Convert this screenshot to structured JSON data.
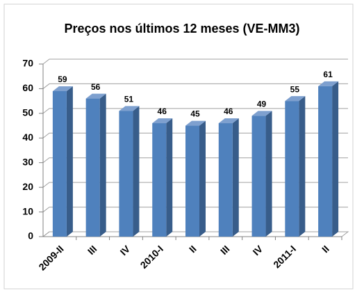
{
  "chart_data": {
    "type": "bar",
    "title": "Preços nos últimos 12 meses (VE-MM3)",
    "categories": [
      "2009-II",
      "III",
      "IV",
      "2010-I",
      "II",
      "III",
      "IV",
      "2011-I",
      "II"
    ],
    "values": [
      59,
      56,
      51,
      46,
      45,
      46,
      49,
      55,
      61
    ],
    "color": "#4f81bd",
    "ylim": [
      0,
      70
    ],
    "yticks": [
      0,
      10,
      20,
      30,
      40,
      50,
      60,
      70
    ],
    "grid": true
  }
}
